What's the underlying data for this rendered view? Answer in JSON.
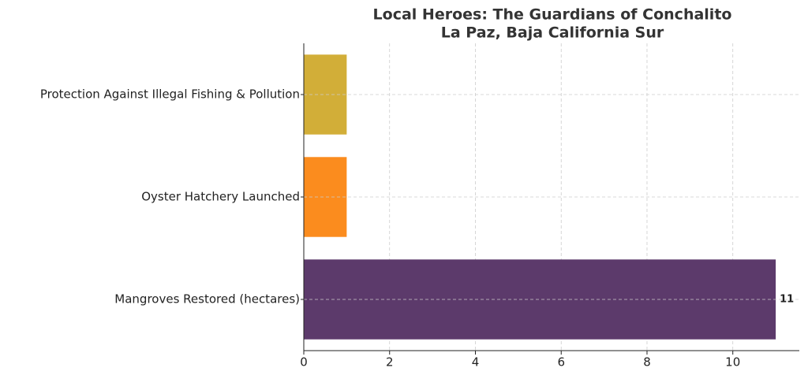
{
  "chart_data": {
    "type": "barh",
    "title": "Local Heroes: The Guardians of Conchalito",
    "subtitle": "La Paz, Baja California Sur",
    "categories": [
      "Mangroves Restored (hectares)",
      "Oyster Hatchery Launched",
      "Protection Against Illegal Fishing & Pollution"
    ],
    "values": [
      11,
      1,
      1
    ],
    "value_labels": [
      "11",
      null,
      null
    ],
    "colors": [
      "#5c3a6b",
      "#fb8c1e",
      "#d2ae38"
    ],
    "xlim": [
      0,
      11.55
    ],
    "xticks": [
      0,
      2,
      4,
      6,
      8,
      10
    ],
    "grid": true
  }
}
